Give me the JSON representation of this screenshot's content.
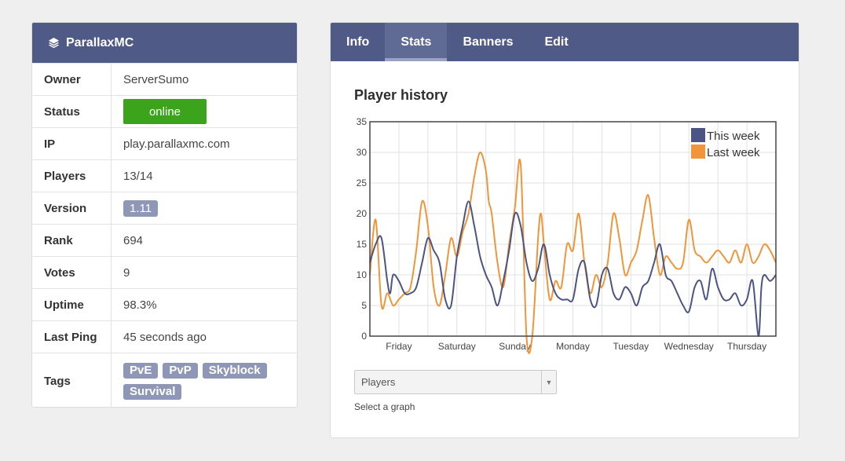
{
  "server": {
    "name": "ParallaxMC",
    "rows": [
      {
        "label": "Owner",
        "value": "ServerSumo"
      },
      {
        "label": "Status",
        "value": "online"
      },
      {
        "label": "IP",
        "value": "play.parallaxmc.com"
      },
      {
        "label": "Players",
        "value": "13/14"
      },
      {
        "label": "Version",
        "value": "1.11"
      },
      {
        "label": "Rank",
        "value": "694"
      },
      {
        "label": "Votes",
        "value": "9"
      },
      {
        "label": "Uptime",
        "value": "98.3%"
      },
      {
        "label": "Last Ping",
        "value": "45 seconds ago"
      }
    ],
    "tags_label": "Tags",
    "tags": [
      "PvE",
      "PvP",
      "Skyblock",
      "Survival"
    ]
  },
  "tabs": [
    "Info",
    "Stats",
    "Banners",
    "Edit"
  ],
  "active_tab": "Stats",
  "colors": {
    "header": "#4f5a87",
    "online": "#3ca41c",
    "badge": "#8f97b6",
    "this_week": "#4b5482",
    "last_week": "#f0953a"
  },
  "stats": {
    "title": "Player history",
    "select_value": "Players",
    "select_help": "Select a graph"
  },
  "chart_data": {
    "type": "line",
    "title": "Player history",
    "xlabel": "",
    "ylabel": "",
    "ylim": [
      0,
      35
    ],
    "yticks": [
      0,
      5,
      10,
      15,
      20,
      25,
      30,
      35
    ],
    "xlim": [
      0,
      7
    ],
    "x_tick_labels": [
      "Friday",
      "Saturday",
      "Sunday",
      "Monday",
      "Tuesday",
      "Wednesday",
      "Thursday"
    ],
    "x_tick_positions": [
      0.5,
      1.5,
      2.5,
      3.5,
      4.5,
      5.5,
      6.5
    ],
    "grid": true,
    "legend_position": "top-right",
    "series": [
      {
        "name": "This week",
        "color": "#4b5482",
        "x": [
          0,
          0.1,
          0.2,
          0.3,
          0.35,
          0.4,
          0.5,
          0.6,
          0.7,
          0.8,
          0.9,
          1.0,
          1.1,
          1.2,
          1.3,
          1.4,
          1.5,
          1.6,
          1.7,
          1.8,
          1.9,
          2.0,
          2.1,
          2.2,
          2.3,
          2.4,
          2.5,
          2.6,
          2.7,
          2.8,
          2.9,
          3.0,
          3.1,
          3.2,
          3.3,
          3.4,
          3.5,
          3.6,
          3.7,
          3.8,
          3.9,
          4.0,
          4.1,
          4.2,
          4.3,
          4.4,
          4.5,
          4.6,
          4.7,
          4.8,
          4.9,
          5.0,
          5.1,
          5.2,
          5.3,
          5.4,
          5.5,
          5.6,
          5.7,
          5.8,
          5.9,
          6.0,
          6.1,
          6.2,
          6.3,
          6.4,
          6.5,
          6.6,
          6.7,
          6.75,
          6.8,
          6.9,
          7.0
        ],
        "values": [
          12,
          15,
          16,
          9,
          7,
          10,
          9,
          7,
          7,
          8,
          12,
          16,
          14,
          12,
          6,
          5,
          13,
          18,
          22,
          18,
          13,
          10,
          8,
          5,
          9,
          14,
          20,
          18,
          12,
          9,
          11,
          15,
          10,
          7,
          6,
          6,
          6,
          11,
          12,
          6,
          5,
          10,
          11,
          7,
          6,
          8,
          7,
          5,
          8,
          9,
          12,
          15,
          10,
          9,
          7,
          5,
          4,
          8,
          9,
          6,
          11,
          8,
          6,
          6,
          7,
          5,
          6,
          9,
          0,
          8,
          10,
          9,
          10
        ]
      },
      {
        "name": "Last week",
        "color": "#f0953a",
        "x": [
          0,
          0.1,
          0.2,
          0.3,
          0.4,
          0.5,
          0.6,
          0.7,
          0.8,
          0.9,
          1.0,
          1.1,
          1.2,
          1.3,
          1.4,
          1.5,
          1.6,
          1.7,
          1.8,
          1.9,
          2.0,
          2.05,
          2.1,
          2.2,
          2.3,
          2.4,
          2.5,
          2.6,
          2.7,
          2.8,
          2.9,
          2.95,
          3.0,
          3.1,
          3.2,
          3.3,
          3.4,
          3.5,
          3.6,
          3.7,
          3.8,
          3.9,
          4.0,
          4.1,
          4.2,
          4.3,
          4.4,
          4.5,
          4.6,
          4.7,
          4.8,
          4.9,
          5.0,
          5.1,
          5.2,
          5.3,
          5.4,
          5.5,
          5.6,
          5.7,
          5.8,
          5.9,
          6.0,
          6.1,
          6.2,
          6.3,
          6.4,
          6.5,
          6.6,
          6.7,
          6.8,
          6.9,
          7.0
        ],
        "values": [
          10,
          19,
          5,
          7,
          5,
          6,
          7,
          8,
          14,
          22,
          18,
          8,
          5,
          10,
          16,
          13,
          17,
          20,
          26,
          30,
          27,
          22,
          20,
          12,
          8,
          15,
          21,
          28,
          0,
          0,
          16,
          20,
          15,
          6,
          9,
          8,
          15,
          14,
          20,
          12,
          7,
          10,
          8,
          12,
          20,
          16,
          10,
          12,
          14,
          19,
          23,
          16,
          10,
          13,
          12,
          11,
          12,
          19,
          14,
          13,
          12,
          13,
          14,
          13,
          12,
          14,
          12,
          15,
          12,
          13,
          15,
          14,
          12
        ]
      }
    ]
  }
}
